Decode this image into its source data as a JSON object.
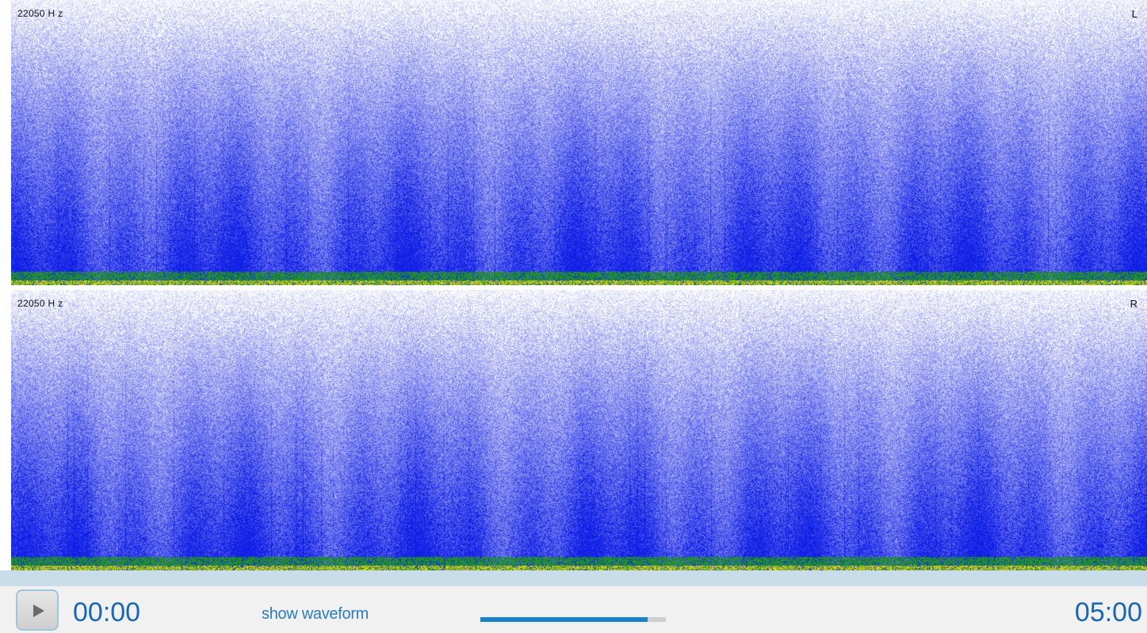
{
  "spectrogram": {
    "channels": [
      {
        "name": "L",
        "freq_label": "22050 H z"
      },
      {
        "name": "R",
        "freq_label": "22050 H z"
      }
    ]
  },
  "player": {
    "play_button": {
      "icon": "play-icon"
    },
    "current_time": "00:00",
    "waveform_link": "show waveform",
    "total_time": "05:00",
    "progress": 0.9
  },
  "colors": {
    "spectro_bright": "#0d1de8",
    "low_band_green": "#1f8a1f",
    "low_band_yellow": "#d9d21a",
    "accent_blue": "#1a66b0",
    "progress_blue": "#1a80c8"
  }
}
